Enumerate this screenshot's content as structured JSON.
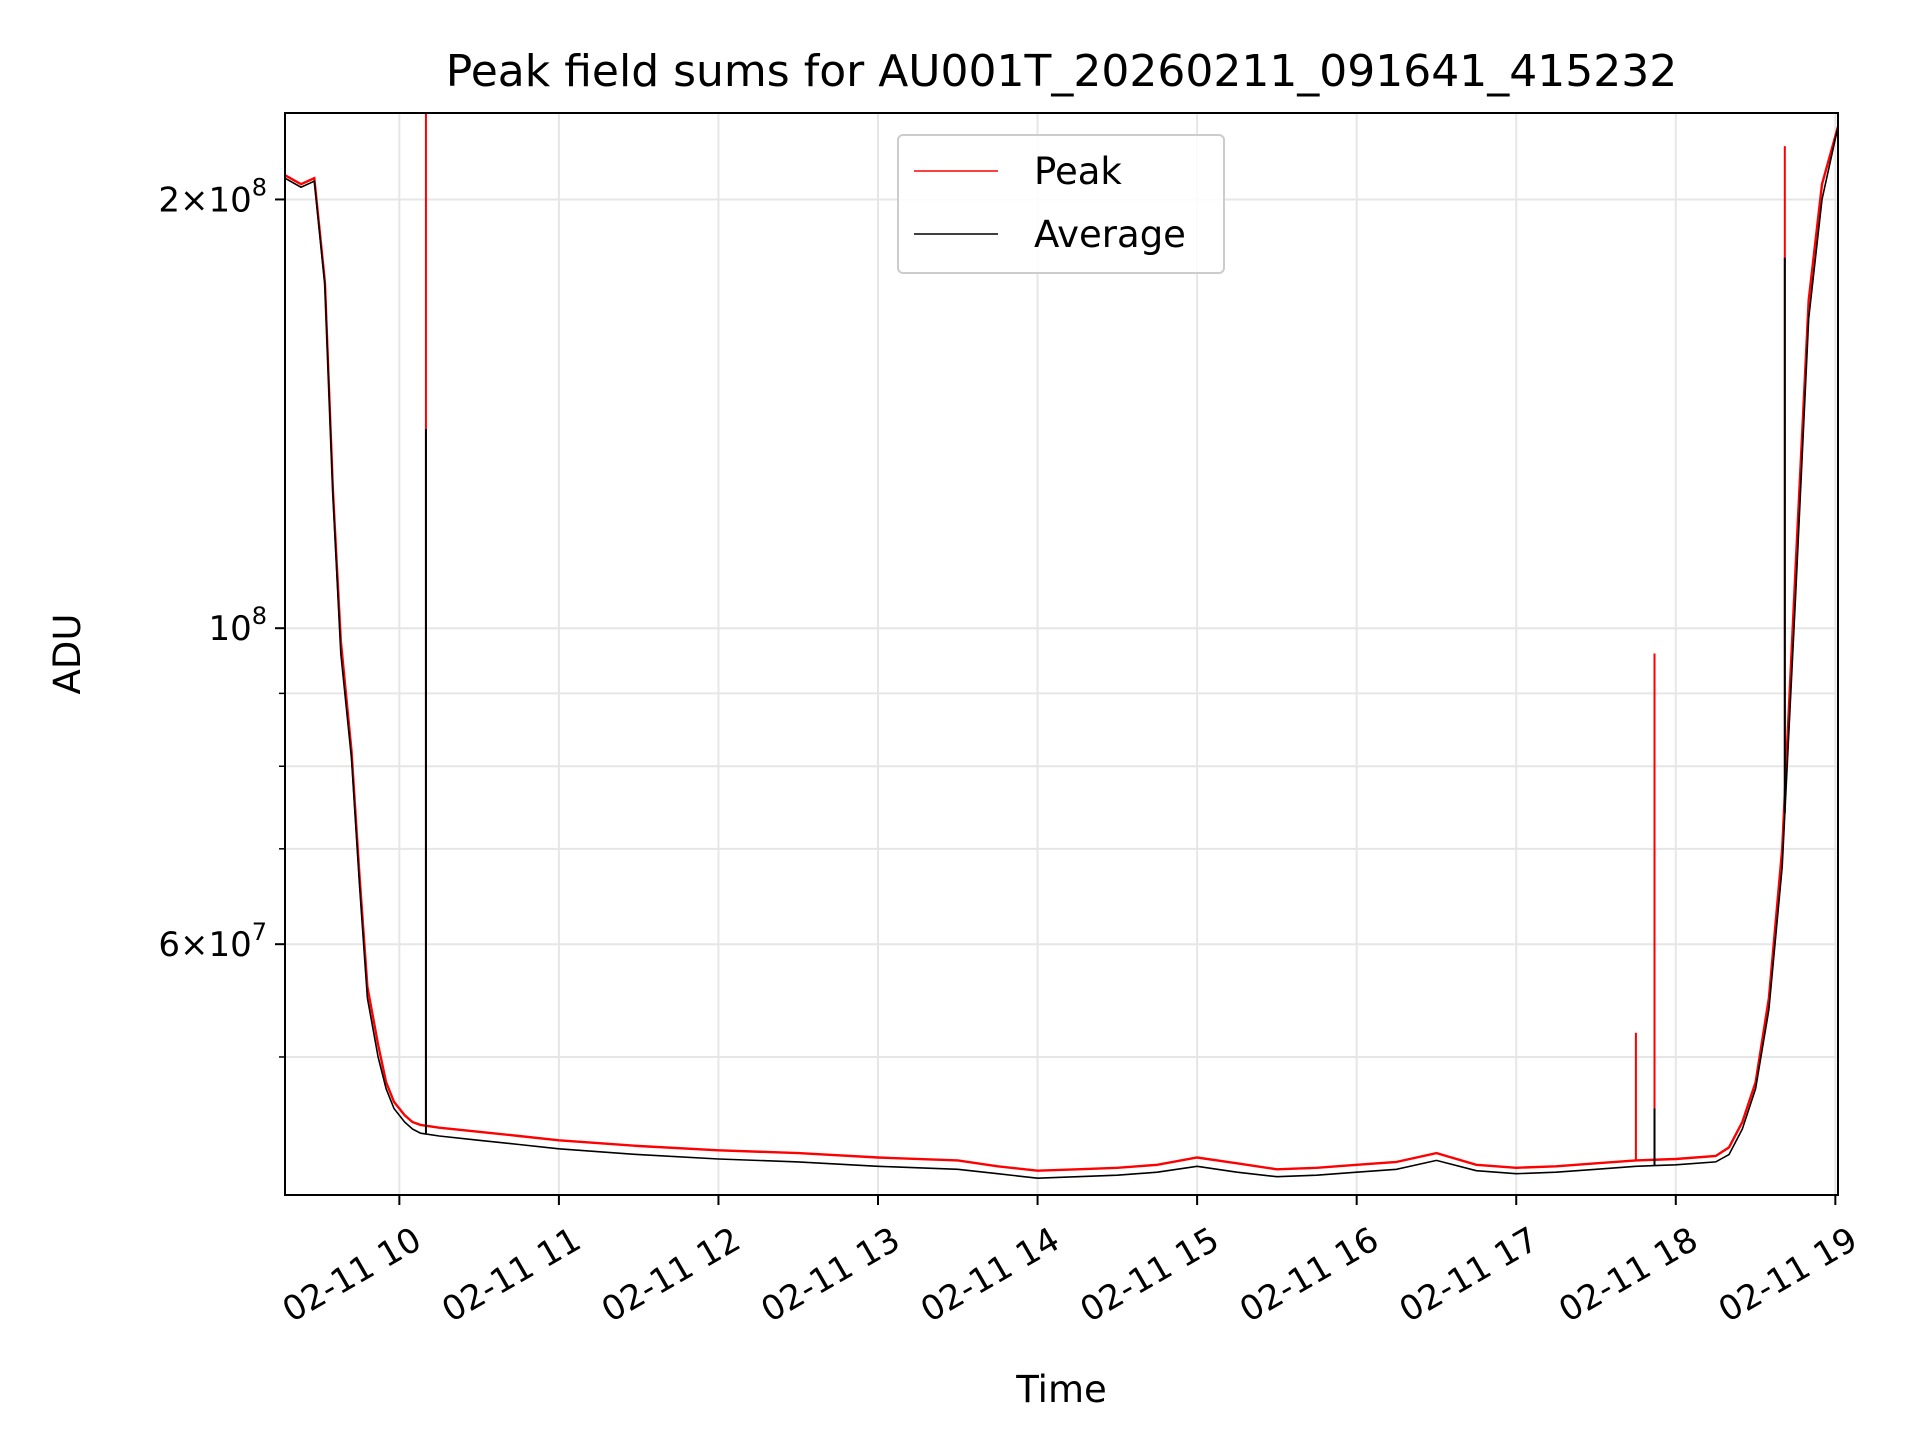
{
  "chart_data": {
    "type": "line",
    "title": "Peak field sums for AU001T_20260211_091641_415232",
    "xlabel": "Time",
    "ylabel": "ADU",
    "yscale": "log",
    "xlim": [
      "02-11 09:17",
      "02-11 19:01"
    ],
    "ylim": [
      40000000,
      230000000
    ],
    "grid": true,
    "legend_position": "top-center",
    "x_ticks": [
      "02-11 10",
      "02-11 11",
      "02-11 12",
      "02-11 13",
      "02-11 14",
      "02-11 15",
      "02-11 16",
      "02-11 17",
      "02-11 18",
      "02-11 19"
    ],
    "y_major_ticks": [
      {
        "value": 60000000,
        "mantissa": "6",
        "exponent": "7"
      },
      {
        "value": 100000000,
        "mantissa": "",
        "exponent": "8"
      },
      {
        "value": 200000000,
        "mantissa": "2",
        "exponent": "8"
      }
    ],
    "y_minor_ticks": [
      50000000,
      70000000,
      80000000,
      90000000
    ],
    "series": [
      {
        "name": "Peak",
        "color": "#ff0000",
        "x": [
          "02-11 09:17",
          "02-11 09:23",
          "02-11 09:28",
          "02-11 09:32",
          "02-11 09:35",
          "02-11 09:38",
          "02-11 09:42",
          "02-11 09:45",
          "02-11 09:48",
          "02-11 09:52",
          "02-11 09:55",
          "02-11 09:58",
          "02-11 10:02",
          "02-11 10:05",
          "02-11 10:08",
          "02-11 10:15",
          "02-11 10:30",
          "02-11 10:45",
          "02-11 11:00",
          "02-11 11:30",
          "02-11 12:00",
          "02-11 12:30",
          "02-11 13:00",
          "02-11 13:30",
          "02-11 13:45",
          "02-11 14:00",
          "02-11 14:15",
          "02-11 14:30",
          "02-11 14:45",
          "02-11 15:00",
          "02-11 15:15",
          "02-11 15:30",
          "02-11 15:45",
          "02-11 16:00",
          "02-11 16:15",
          "02-11 16:30",
          "02-11 16:45",
          "02-11 17:00",
          "02-11 17:15",
          "02-11 17:30",
          "02-11 17:45",
          "02-11 18:00",
          "02-11 18:15",
          "02-11 18:20",
          "02-11 18:25",
          "02-11 18:30",
          "02-11 18:35",
          "02-11 18:40",
          "02-11 18:45",
          "02-11 18:50",
          "02-11 18:55",
          "02-11 19:01"
        ],
        "y": [
          208000000,
          205000000,
          207000000,
          175000000,
          125000000,
          98000000,
          82000000,
          67000000,
          56000000,
          51000000,
          48000000,
          46500000,
          45500000,
          45000000,
          44800000,
          44600000,
          44300000,
          44000000,
          43700000,
          43300000,
          43000000,
          42800000,
          42500000,
          42300000,
          41900000,
          41600000,
          41700000,
          41800000,
          42000000,
          42500000,
          42100000,
          41700000,
          41800000,
          42000000,
          42200000,
          42800000,
          42000000,
          41800000,
          41900000,
          42100000,
          42300000,
          42400000,
          42600000,
          43200000,
          45000000,
          48000000,
          55000000,
          70000000,
          110000000,
          170000000,
          205000000,
          225000000
        ],
        "spikes": [
          {
            "x": "02-11 10:10",
            "y": 230000000
          },
          {
            "x": "02-11 17:45",
            "y": 52000000
          },
          {
            "x": "02-11 17:52",
            "y": 96000000
          },
          {
            "x": "02-11 18:41",
            "y": 218000000
          },
          {
            "x": "02-11 18:51",
            "y": 172000000
          }
        ]
      },
      {
        "name": "Average",
        "color": "#000000",
        "x": [
          "02-11 09:17",
          "02-11 09:23",
          "02-11 09:28",
          "02-11 09:32",
          "02-11 09:35",
          "02-11 09:38",
          "02-11 09:42",
          "02-11 09:45",
          "02-11 09:48",
          "02-11 09:52",
          "02-11 09:55",
          "02-11 09:58",
          "02-11 10:02",
          "02-11 10:05",
          "02-11 10:08",
          "02-11 10:15",
          "02-11 10:30",
          "02-11 10:45",
          "02-11 11:00",
          "02-11 11:30",
          "02-11 12:00",
          "02-11 12:30",
          "02-11 13:00",
          "02-11 13:30",
          "02-11 13:45",
          "02-11 14:00",
          "02-11 14:15",
          "02-11 14:30",
          "02-11 14:45",
          "02-11 15:00",
          "02-11 15:15",
          "02-11 15:30",
          "02-11 15:45",
          "02-11 16:00",
          "02-11 16:15",
          "02-11 16:30",
          "02-11 16:45",
          "02-11 17:00",
          "02-11 17:15",
          "02-11 17:30",
          "02-11 17:45",
          "02-11 18:00",
          "02-11 18:15",
          "02-11 18:20",
          "02-11 18:25",
          "02-11 18:30",
          "02-11 18:35",
          "02-11 18:40",
          "02-11 18:45",
          "02-11 18:50",
          "02-11 18:55",
          "02-11 19:01"
        ],
        "y": [
          207000000,
          204000000,
          206000000,
          174000000,
          124000000,
          96000000,
          81000000,
          66000000,
          55000000,
          50000000,
          47500000,
          46000000,
          45000000,
          44500000,
          44200000,
          44000000,
          43700000,
          43400000,
          43100000,
          42700000,
          42400000,
          42200000,
          41900000,
          41700000,
          41400000,
          41100000,
          41200000,
          41300000,
          41500000,
          41900000,
          41500000,
          41200000,
          41300000,
          41500000,
          41700000,
          42300000,
          41600000,
          41400000,
          41500000,
          41700000,
          41900000,
          42000000,
          42200000,
          42700000,
          44500000,
          47500000,
          54000000,
          68000000,
          105000000,
          165000000,
          200000000,
          225000000
        ],
        "spikes": [
          {
            "x": "02-11 10:10",
            "y": 138000000
          },
          {
            "x": "02-11 17:52",
            "y": 46000000
          },
          {
            "x": "02-11 18:41",
            "y": 182000000
          }
        ]
      }
    ]
  }
}
